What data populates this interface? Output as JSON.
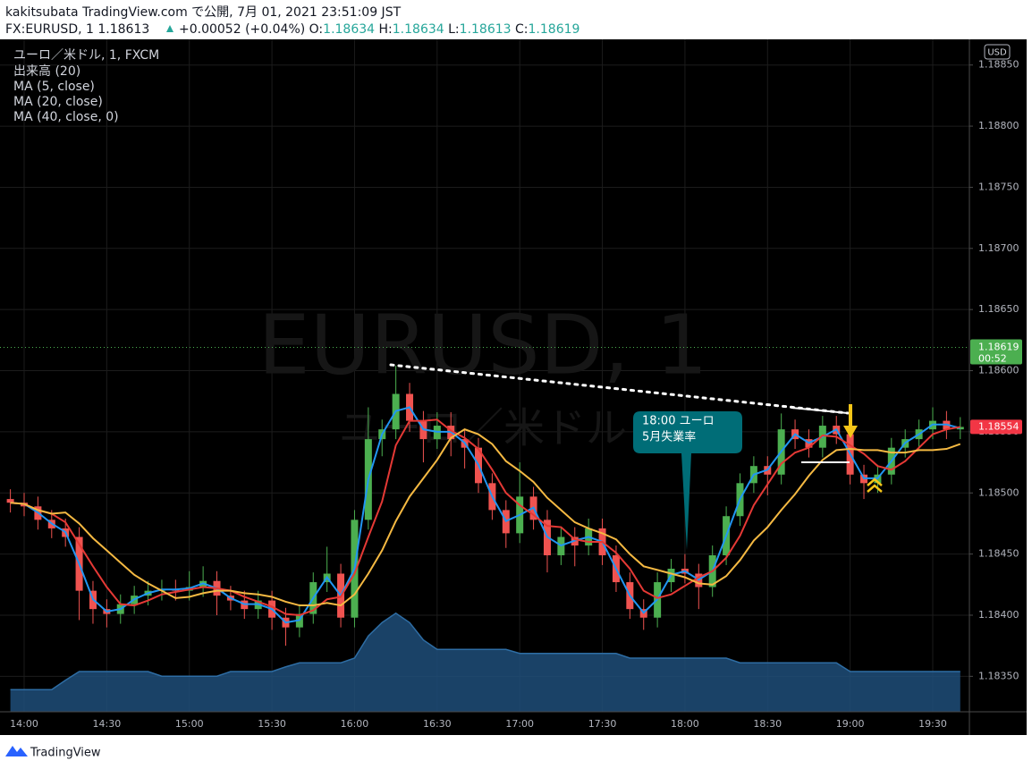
{
  "header": {
    "publisher": "kakitsubata TradingView.com で公開, 7月 01, 2021 23:51:09 JST",
    "symbol": "FX:EURUSD, 1",
    "price": "1.18613",
    "change": "+0.00052 (+0.04%)",
    "ohlc": [
      {
        "label": "O:",
        "value": "1.18634"
      },
      {
        "label": "H:",
        "value": "1.18634"
      },
      {
        "label": "L:",
        "value": "1.18613"
      },
      {
        "label": "C:",
        "value": "1.18619"
      }
    ]
  },
  "chart_data": {
    "type": "candlestick",
    "title": "ユーロ／米ドル, 1, FXCM",
    "watermark": [
      "EURUSD, 1",
      "ユーロ／米ドル"
    ],
    "currency": "USD",
    "categories": [
      null,
      "14:00",
      null,
      null,
      null,
      null,
      null,
      "14:30",
      null,
      null,
      null,
      null,
      null,
      "15:00",
      null,
      null,
      null,
      null,
      null,
      "15:30",
      null,
      null,
      null,
      null,
      null,
      "16:00",
      null,
      null,
      null,
      null,
      null,
      "16:30",
      null,
      null,
      null,
      null,
      null,
      "17:00",
      null,
      null,
      null,
      null,
      null,
      "17:30",
      null,
      null,
      null,
      null,
      null,
      "18:00",
      null,
      null,
      null,
      null,
      null,
      "18:30",
      null,
      null,
      null,
      null,
      null,
      "19:00",
      null,
      null,
      null,
      null,
      null,
      "19:30",
      null,
      null
    ],
    "open": [
      1.18495,
      1.18492,
      1.18489,
      1.18478,
      1.18471,
      1.18464,
      1.1842,
      1.18405,
      1.18401,
      1.18409,
      1.18416,
      1.1842,
      1.18421,
      1.1842,
      1.18423,
      1.18428,
      1.18416,
      1.18412,
      1.18405,
      1.18412,
      1.18398,
      1.1839,
      1.18401,
      1.18427,
      1.18434,
      1.18398,
      1.18478,
      1.18544,
      1.18552,
      1.18581,
      1.18559,
      1.18544,
      1.18555,
      1.18544,
      1.18537,
      1.18508,
      1.18486,
      1.18467,
      1.18497,
      1.18478,
      1.18449,
      1.18464,
      1.18457,
      1.18471,
      1.18449,
      1.18427,
      1.18405,
      1.18398,
      1.18427,
      1.18438,
      1.18434,
      1.18423,
      1.18449,
      1.18481,
      1.18508,
      1.18522,
      1.18515,
      1.18552,
      1.18544,
      1.18537,
      1.18555,
      1.18548,
      1.18515,
      1.18508,
      1.18515,
      1.18537,
      1.18544,
      1.18552,
      1.18559,
      1.18552
    ],
    "high": [
      1.18503,
      1.185,
      1.18497,
      1.18486,
      1.18479,
      1.18472,
      1.18428,
      1.18413,
      1.18417,
      1.18424,
      1.18428,
      1.18429,
      1.18429,
      1.18436,
      1.1844,
      1.18436,
      1.18424,
      1.1842,
      1.1842,
      1.1842,
      1.18406,
      1.18409,
      1.18435,
      1.18456,
      1.18442,
      1.18486,
      1.1857,
      1.1856,
      1.18604,
      1.1859,
      1.18567,
      1.18566,
      1.18566,
      1.18552,
      1.18545,
      1.18516,
      1.18494,
      1.18525,
      1.18505,
      1.18486,
      1.18472,
      1.18472,
      1.18479,
      1.18479,
      1.18457,
      1.18435,
      1.18413,
      1.18435,
      1.18446,
      1.1845,
      1.18442,
      1.18457,
      1.18489,
      1.18516,
      1.1853,
      1.1853,
      1.18565,
      1.1856,
      1.18552,
      1.18563,
      1.18563,
      1.18556,
      1.18523,
      1.18523,
      1.18545,
      1.18552,
      1.1856,
      1.1857,
      1.18567,
      1.18562
    ],
    "low": [
      1.18484,
      1.18481,
      1.1847,
      1.18463,
      1.18456,
      1.18396,
      1.18393,
      1.1839,
      1.18393,
      1.18401,
      1.18408,
      1.18412,
      1.18412,
      1.18412,
      1.18415,
      1.184,
      1.18404,
      1.18397,
      1.18397,
      1.18388,
      1.18375,
      1.18382,
      1.18393,
      1.18419,
      1.1839,
      1.1839,
      1.1847,
      1.1853,
      1.18544,
      1.1855,
      1.18525,
      1.18536,
      1.1853,
      1.1852,
      1.185,
      1.18478,
      1.18455,
      1.18459,
      1.1847,
      1.18435,
      1.18441,
      1.1844,
      1.18449,
      1.18441,
      1.18419,
      1.18397,
      1.18388,
      1.1839,
      1.18419,
      1.18426,
      1.18405,
      1.18415,
      1.18441,
      1.18473,
      1.185,
      1.18498,
      1.18507,
      1.18536,
      1.18529,
      1.18529,
      1.1854,
      1.18507,
      1.18495,
      1.185,
      1.18507,
      1.18529,
      1.18536,
      1.18544,
      1.18544,
      1.18544
    ],
    "close": [
      1.18492,
      1.18489,
      1.18478,
      1.18471,
      1.18464,
      1.1842,
      1.18405,
      1.18401,
      1.18409,
      1.18416,
      1.1842,
      1.18421,
      1.1842,
      1.18423,
      1.18428,
      1.18416,
      1.18412,
      1.18405,
      1.18412,
      1.18398,
      1.1839,
      1.18401,
      1.18427,
      1.18434,
      1.18398,
      1.18478,
      1.18544,
      1.18552,
      1.18581,
      1.18559,
      1.18544,
      1.18555,
      1.18544,
      1.18537,
      1.18508,
      1.18486,
      1.18467,
      1.18497,
      1.18478,
      1.18449,
      1.18464,
      1.18457,
      1.18471,
      1.18449,
      1.18427,
      1.18405,
      1.18398,
      1.18427,
      1.18438,
      1.18434,
      1.18423,
      1.18449,
      1.18481,
      1.18508,
      1.18522,
      1.18515,
      1.18552,
      1.18544,
      1.18537,
      1.18555,
      1.18548,
      1.18515,
      1.18508,
      1.18515,
      1.18537,
      1.18544,
      1.18552,
      1.18559,
      1.18552,
      1.18554
    ],
    "up_color": "#4caf50",
    "down_color": "#ef5350",
    "volume": {
      "name": "出来高 (20)",
      "color": "#1f4e79",
      "line_color": "#2e6da4",
      "ylim": [
        0,
        400
      ],
      "values": [
        33,
        33,
        33,
        33,
        47,
        60,
        60,
        60,
        60,
        60,
        60,
        53,
        53,
        53,
        53,
        53,
        60,
        60,
        60,
        60,
        67,
        73,
        73,
        73,
        73,
        80,
        113,
        133,
        147,
        133,
        107,
        93,
        93,
        93,
        93,
        93,
        93,
        87,
        87,
        87,
        87,
        87,
        87,
        87,
        87,
        80,
        80,
        80,
        80,
        80,
        80,
        80,
        80,
        73,
        73,
        73,
        73,
        73,
        73,
        73,
        73,
        60,
        60,
        60,
        60,
        60,
        60,
        60,
        60,
        60
      ]
    },
    "series": [
      {
        "name": "MA (5, close)",
        "color": "#2196f3",
        "values": [
          1.18492,
          1.18491,
          1.18484,
          1.18475,
          1.18468,
          1.18442,
          1.18413,
          1.18403,
          1.18405,
          1.18413,
          1.18418,
          1.18421,
          1.18421,
          1.18422,
          1.18426,
          1.18422,
          1.18414,
          1.18409,
          1.18409,
          1.18405,
          1.18394,
          1.18396,
          1.18414,
          1.18431,
          1.18416,
          1.18438,
          1.18511,
          1.18548,
          1.18567,
          1.1857,
          1.18552,
          1.1855,
          1.1855,
          1.18541,
          1.18523,
          1.18497,
          1.18477,
          1.18482,
          1.18488,
          1.18464,
          1.18457,
          1.18461,
          1.18464,
          1.1846,
          1.18438,
          1.18416,
          1.18402,
          1.18413,
          1.18433,
          1.18436,
          1.18429,
          1.18436,
          1.18465,
          1.18495,
          1.18515,
          1.18519,
          1.18534,
          1.18548,
          1.18541,
          1.18546,
          1.18552,
          1.18532,
          1.18512,
          1.18512,
          1.18526,
          1.18541,
          1.18548,
          1.18556,
          1.18556,
          1.18553
        ]
      },
      {
        "name": "MA (20, close)",
        "color": "#e53935",
        "values": [
          1.18492,
          1.18491,
          1.18486,
          1.18483,
          1.18476,
          1.18458,
          1.1844,
          1.18423,
          1.18409,
          1.18408,
          1.18412,
          1.18417,
          1.18419,
          1.18421,
          1.18423,
          1.18422,
          1.1842,
          1.18415,
          1.18411,
          1.18407,
          1.18401,
          1.184,
          1.18404,
          1.18413,
          1.18415,
          1.18434,
          1.18464,
          1.18493,
          1.18539,
          1.18559,
          1.18559,
          1.1856,
          1.18551,
          1.18545,
          1.18536,
          1.18519,
          1.185,
          1.1849,
          1.18482,
          1.18473,
          1.18472,
          1.18462,
          1.1846,
          1.1846,
          1.18451,
          1.18438,
          1.1842,
          1.18414,
          1.18417,
          1.18424,
          1.18431,
          1.18436,
          1.18447,
          1.18465,
          1.1849,
          1.18507,
          1.18524,
          1.18533,
          1.18537,
          1.18547,
          1.18546,
          1.18539,
          1.18532,
          1.18522,
          1.18519,
          1.18526,
          1.18537,
          1.18548,
          1.18552,
          1.18554
        ]
      },
      {
        "name": "MA (40, close, 0)",
        "color": "#f5b942",
        "values": [
          1.18492,
          1.18491,
          1.18486,
          1.18483,
          1.18484,
          1.18475,
          1.18463,
          1.18453,
          1.18443,
          1.18433,
          1.18426,
          1.1842,
          1.18414,
          1.18415,
          1.18418,
          1.1842,
          1.1842,
          1.18418,
          1.18417,
          1.18415,
          1.18411,
          1.18408,
          1.18408,
          1.1841,
          1.18408,
          1.18417,
          1.18434,
          1.18453,
          1.18477,
          1.18497,
          1.18512,
          1.18527,
          1.18545,
          1.18552,
          1.18548,
          1.1854,
          1.18526,
          1.18518,
          1.18509,
          1.18496,
          1.18486,
          1.18476,
          1.18471,
          1.18467,
          1.18462,
          1.1845,
          1.1844,
          1.18437,
          1.18434,
          1.18431,
          1.18426,
          1.18425,
          1.18432,
          1.18445,
          1.18461,
          1.18472,
          1.18486,
          1.18499,
          1.18514,
          1.18527,
          1.18535,
          1.18536,
          1.18535,
          1.18535,
          1.18533,
          1.18533,
          1.18535,
          1.18535,
          1.18536,
          1.1854
        ]
      }
    ],
    "ylim": [
      1.18321,
      1.18871
    ],
    "yticks": [
      {
        "value": 1.1835,
        "label": "1.18350"
      },
      {
        "value": 1.184,
        "label": "1.18400"
      },
      {
        "value": 1.1845,
        "label": "1.18450"
      },
      {
        "value": 1.185,
        "label": "1.18500"
      },
      {
        "value": 1.1855,
        "label": "1.18550"
      },
      {
        "value": 1.186,
        "label": "1.18600"
      },
      {
        "value": 1.1865,
        "label": "1.18650"
      },
      {
        "value": 1.187,
        "label": "1.18700"
      },
      {
        "value": 1.1875,
        "label": "1.18750"
      },
      {
        "value": 1.188,
        "label": "1.18800"
      },
      {
        "value": 1.1885,
        "label": "1.18850"
      }
    ],
    "grid": true,
    "last_price": 1.18619,
    "last_price_color": "#4caf50",
    "countdown": "00:52",
    "marker_price": 1.18554,
    "marker_color": "#f23645",
    "annotation": [
      "18:00 ユーロ",
      "5月失業率"
    ]
  },
  "footer": "TradingView"
}
